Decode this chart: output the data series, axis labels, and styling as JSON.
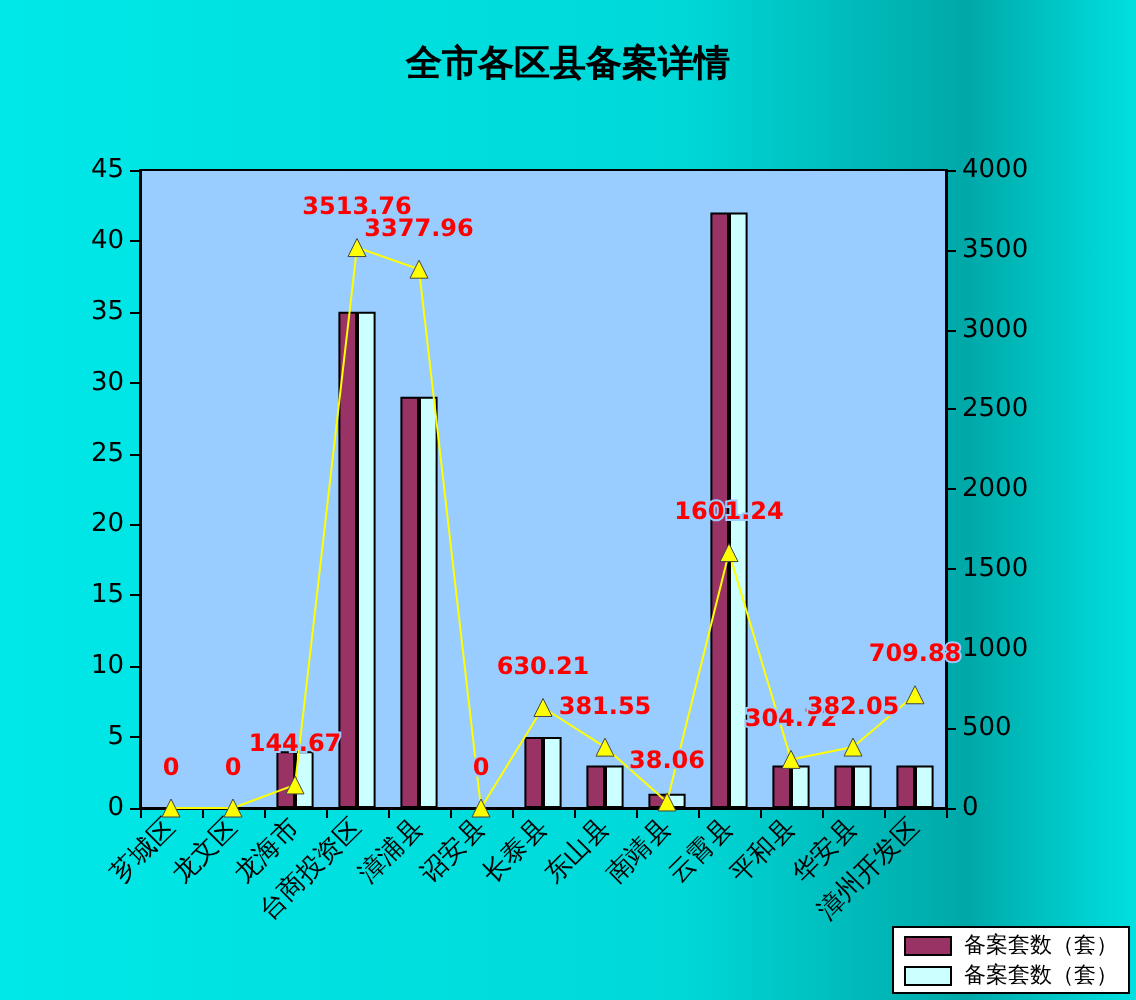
{
  "chart_data": {
    "type": "bar",
    "title": "全市各区县备案详情",
    "categories": [
      "芗城区",
      "龙文区",
      "龙海市",
      "台商投资区",
      "漳浦县",
      "诏安县",
      "长泰县",
      "东山县",
      "南靖县",
      "云霄县",
      "平和县",
      "华安县",
      "漳州开发区"
    ],
    "series": [
      {
        "name": "备案套数（套）",
        "color": "#993366",
        "values": [
          0,
          0,
          4,
          35,
          29,
          0,
          5,
          3,
          1,
          42,
          3,
          3,
          3
        ]
      },
      {
        "name": "备案套数（套）",
        "color": "#ccffff",
        "values": [
          0,
          0,
          4,
          35,
          29,
          0,
          5,
          3,
          1,
          42,
          3,
          3,
          3
        ]
      },
      {
        "type": "line",
        "axis": "y2",
        "color": "#ffff00",
        "marker": "triangle",
        "values": [
          0,
          0,
          144.67,
          3513.76,
          3377.96,
          0,
          630.21,
          381.55,
          38.06,
          1601.24,
          304.72,
          382.05,
          709.88
        ],
        "value_labels": [
          "0",
          "0",
          "144.67",
          "3513.76",
          "3377.96",
          "0",
          "630.21",
          "381.55",
          "38.06",
          "1601.24",
          "304.72",
          "382.05",
          "709.88"
        ]
      }
    ],
    "ylim": [
      0,
      45
    ],
    "yticks": [
      0,
      5,
      10,
      15,
      20,
      25,
      30,
      35,
      40,
      45
    ],
    "y2lim": [
      0,
      4000
    ],
    "y2ticks": [
      0,
      500,
      1000,
      1500,
      2000,
      2500,
      3000,
      3500,
      4000
    ],
    "grid": false,
    "legend": "bottom right"
  }
}
